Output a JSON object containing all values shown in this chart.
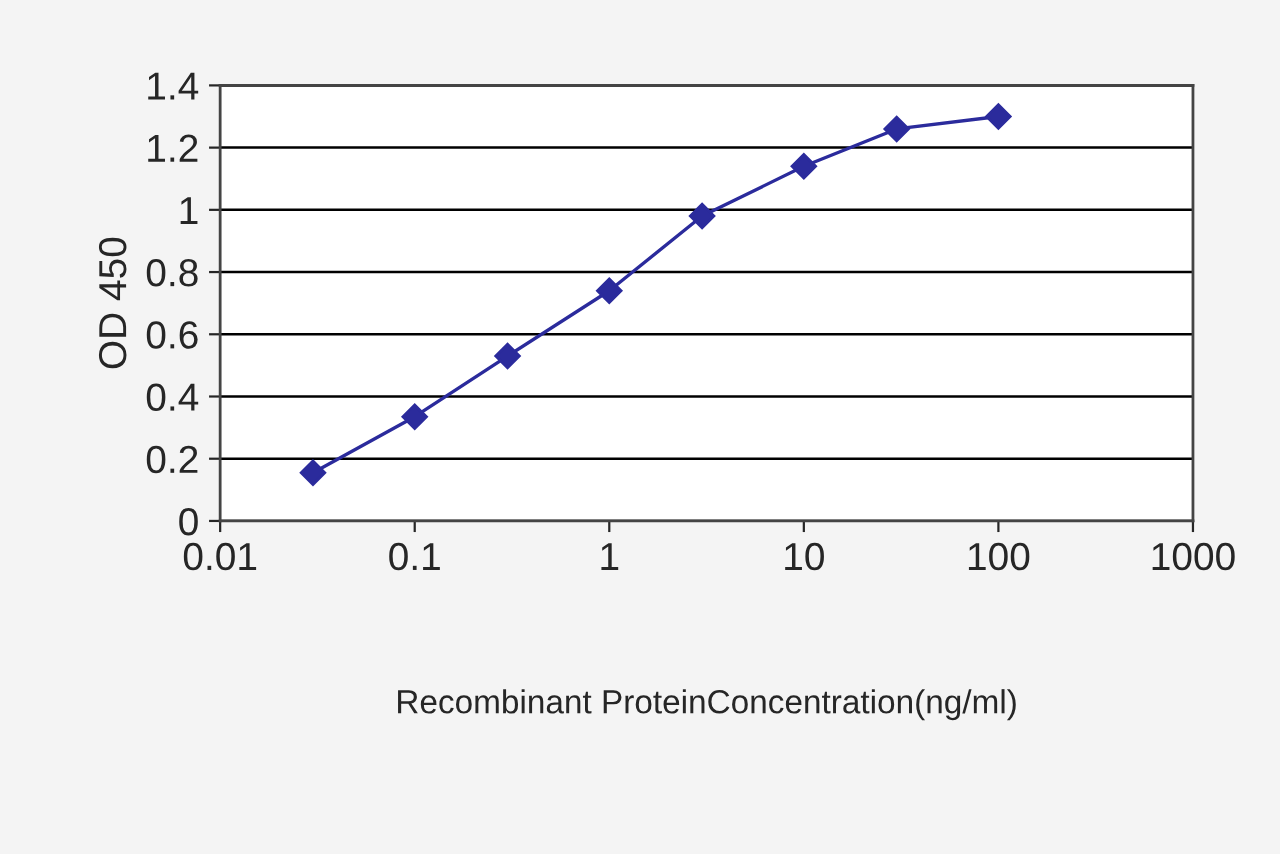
{
  "chart_data": {
    "type": "line",
    "xlabel": "Recombinant ProteinConcentration(ng/ml)",
    "ylabel": "OD 450",
    "x": [
      0.03,
      0.1,
      0.3,
      1,
      3,
      10,
      30,
      100
    ],
    "series": [
      {
        "color": "#2b2b9c",
        "values": [
          0.155,
          0.335,
          0.53,
          0.74,
          0.98,
          1.14,
          1.26,
          1.3
        ]
      }
    ],
    "log": "x",
    "xlim": [
      0.01,
      1000
    ],
    "xticks": [
      0.01,
      0.1,
      1,
      10,
      100,
      1000
    ],
    "ylim": [
      0,
      1.4
    ],
    "yticks": [
      0,
      0.2,
      0.4,
      0.6,
      0.8,
      1,
      1.2,
      1.4
    ],
    "grid": "y",
    "marker": "diamond",
    "line_style": "solid"
  }
}
